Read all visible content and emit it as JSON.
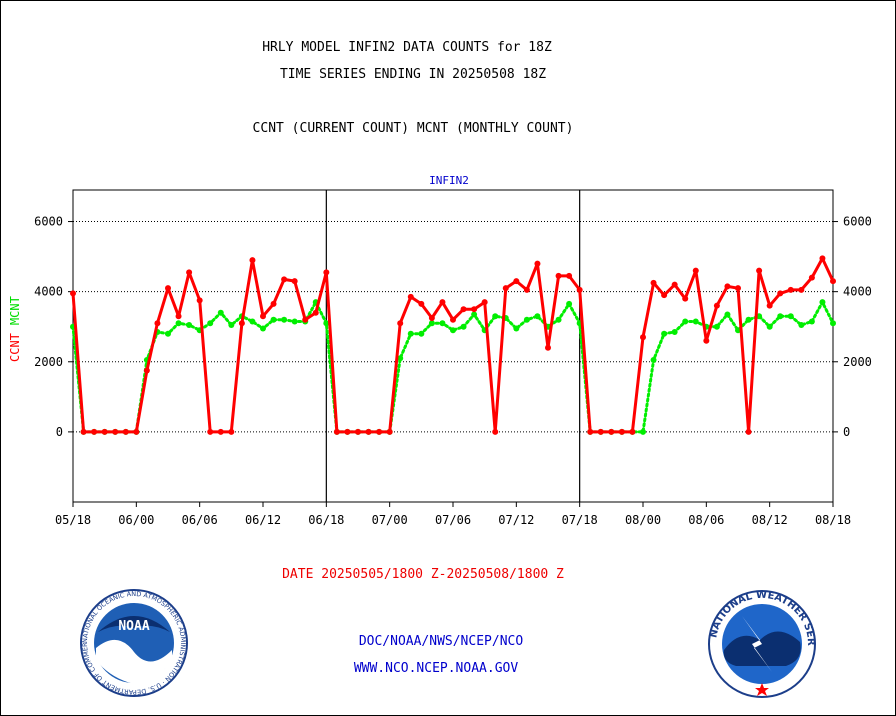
{
  "page": {
    "title_line1": "HRLY MODEL INFIN2 DATA COUNTS for 18Z",
    "title_line2": "TIME SERIES ENDING IN 20250508 18Z",
    "subtitle": "CCNT (CURRENT COUNT) MCNT (MONTHLY COUNT)",
    "date_range": "DATE 20250505/1800 Z-20250508/1800 Z",
    "footer_line1": "DOC/NOAA/NWS/NCEP/NCO",
    "footer_line2": "WWW.NCO.NCEP.NOAA.GOV",
    "noaa_logo_text": "NOAA",
    "nws_logo_text": "NATIONAL WEATHER SERVICE",
    "noaa_seal_ring_text": "NATIONAL OCEANIC AND ATMOSPHERIC ADMINISTRATION · U.S. DEPARTMENT OF COMMERCE",
    "colors": {
      "ccnt": "#ff0000",
      "mcnt": "#00ee00",
      "title": "#000000",
      "label_blue": "#0000cc",
      "date_red": "#ee0000"
    }
  },
  "chart_data": {
    "type": "line",
    "title": "INFIN2",
    "ylabel_ccnt": "CCNT",
    "ylabel_mcnt": "MCNT",
    "ylim": [
      -2000,
      6900
    ],
    "yticks": [
      0,
      2000,
      4000,
      6000
    ],
    "ytick_labels": [
      "0",
      "2000",
      "4000",
      "6000"
    ],
    "xlim": [
      0,
      72
    ],
    "xticks": [
      0,
      6,
      12,
      18,
      24,
      30,
      36,
      42,
      48,
      54,
      60,
      66,
      72
    ],
    "xtick_labels": [
      "05/18",
      "06/00",
      "06/06",
      "06/12",
      "06/18",
      "07/00",
      "07/06",
      "07/12",
      "07/18",
      "08/00",
      "08/06",
      "08/12",
      "08/18"
    ],
    "day_dividers": [
      24,
      48
    ],
    "grid": true,
    "series": [
      {
        "name": "CCNT",
        "color": "#ff0000",
        "x": [
          0,
          1,
          2,
          3,
          4,
          5,
          6,
          7,
          8,
          9,
          10,
          11,
          12,
          13,
          14,
          15,
          16,
          17,
          18,
          19,
          20,
          21,
          22,
          23,
          24,
          25,
          26,
          27,
          28,
          29,
          30,
          31,
          32,
          33,
          34,
          35,
          36,
          37,
          38,
          39,
          40,
          41,
          42,
          43,
          44,
          45,
          46,
          47,
          48,
          49,
          50,
          51,
          52,
          53,
          54,
          55,
          56,
          57,
          58,
          59,
          60,
          61,
          62,
          63,
          64,
          65,
          66,
          67,
          68,
          69,
          70,
          71,
          72
        ],
        "values": [
          3950,
          0,
          0,
          0,
          0,
          0,
          0,
          1750,
          3100,
          4100,
          3300,
          4550,
          3750,
          0,
          0,
          0,
          3100,
          4900,
          3300,
          3650,
          4350,
          4300,
          3200,
          3400,
          4550,
          0,
          0,
          0,
          0,
          0,
          0,
          3100,
          3850,
          3650,
          3250,
          3700,
          3200,
          3500,
          3500,
          3700,
          0,
          4100,
          4300,
          4050,
          4800,
          2400,
          4450,
          4450,
          4050,
          0,
          0,
          0,
          0,
          0,
          2700,
          4250,
          3900,
          4200,
          3800,
          4600,
          2600,
          3600,
          4150,
          4100,
          0,
          4600,
          3600,
          3950,
          4050,
          4050,
          4400,
          4950,
          4300
        ]
      },
      {
        "name": "MCNT",
        "color": "#00ee00",
        "x": [
          0,
          1,
          2,
          3,
          4,
          5,
          6,
          7,
          8,
          9,
          10,
          11,
          12,
          13,
          14,
          15,
          16,
          17,
          18,
          19,
          20,
          21,
          22,
          23,
          24,
          25,
          26,
          27,
          28,
          29,
          30,
          31,
          32,
          33,
          34,
          35,
          36,
          37,
          38,
          39,
          40,
          41,
          42,
          43,
          44,
          45,
          46,
          47,
          48,
          49,
          50,
          51,
          52,
          53,
          54,
          55,
          56,
          57,
          58,
          59,
          60,
          61,
          62,
          63,
          64,
          65,
          66,
          67,
          68,
          69,
          70,
          71,
          72
        ],
        "values": [
          3000,
          0,
          0,
          0,
          0,
          0,
          0,
          2050,
          2850,
          2800,
          3100,
          3050,
          2900,
          3100,
          3400,
          3050,
          3300,
          3150,
          2950,
          3200,
          3200,
          3150,
          3150,
          3700,
          3100,
          0,
          0,
          0,
          0,
          0,
          0,
          2100,
          2800,
          2800,
          3100,
          3100,
          2900,
          3000,
          3350,
          2900,
          3300,
          3250,
          2950,
          3200,
          3300,
          3000,
          3200,
          3650,
          3100,
          0,
          0,
          0,
          0,
          0,
          0,
          2050,
          2800,
          2850,
          3150,
          3150,
          3000,
          3000,
          3350,
          2900,
          3200,
          3300,
          3000,
          3300,
          3300,
          3050,
          3150,
          3700,
          3100
        ]
      }
    ]
  }
}
